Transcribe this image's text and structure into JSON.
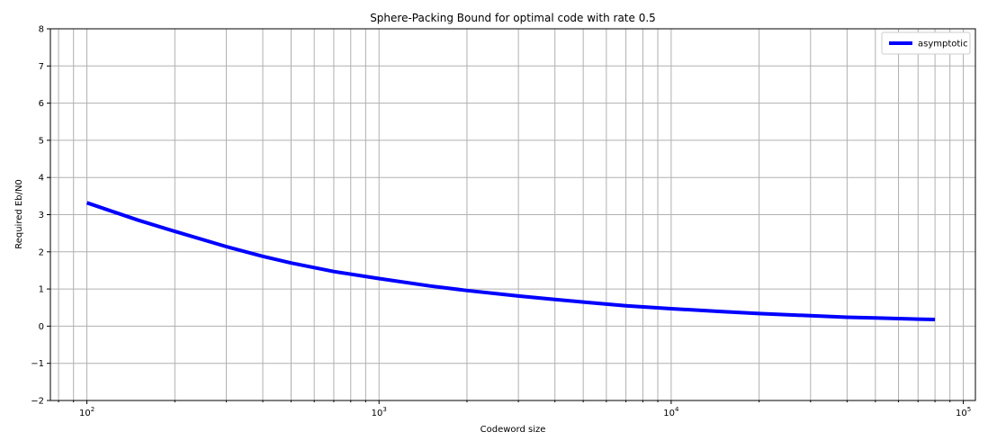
{
  "chart_data": {
    "type": "line",
    "title": "Sphere-Packing Bound for optimal code with rate 0.5",
    "xlabel": "Codeword size",
    "ylabel": "Required Eb/N0",
    "xscale": "log",
    "xlim": [
      75,
      110000
    ],
    "ylim": [
      -2,
      8
    ],
    "grid": true,
    "grid_minor_x": true,
    "legend_position": "top-right",
    "x_tick_labels": [
      {
        "value": 100,
        "base": "10",
        "exp": "2"
      },
      {
        "value": 1000,
        "base": "10",
        "exp": "3"
      },
      {
        "value": 10000,
        "base": "10",
        "exp": "4"
      },
      {
        "value": 100000,
        "base": "10",
        "exp": "5"
      }
    ],
    "y_ticks": [
      -2,
      -1,
      0,
      1,
      2,
      3,
      4,
      5,
      6,
      7,
      8
    ],
    "y_tick_labels": [
      "−2",
      "−1",
      "0",
      "1",
      "2",
      "3",
      "4",
      "5",
      "6",
      "7",
      "8"
    ],
    "series": [
      {
        "name": "asymptotic",
        "color": "#0000ff",
        "x": [
          100,
          150,
          200,
          300,
          400,
          500,
          700,
          1000,
          1500,
          2000,
          3000,
          4000,
          5000,
          7000,
          10000,
          15000,
          20000,
          30000,
          40000,
          50000,
          70000,
          80000
        ],
        "y": [
          3.32,
          2.85,
          2.55,
          2.14,
          1.88,
          1.7,
          1.47,
          1.28,
          1.08,
          0.96,
          0.81,
          0.72,
          0.65,
          0.55,
          0.47,
          0.39,
          0.34,
          0.28,
          0.24,
          0.22,
          0.19,
          0.18
        ]
      }
    ]
  }
}
